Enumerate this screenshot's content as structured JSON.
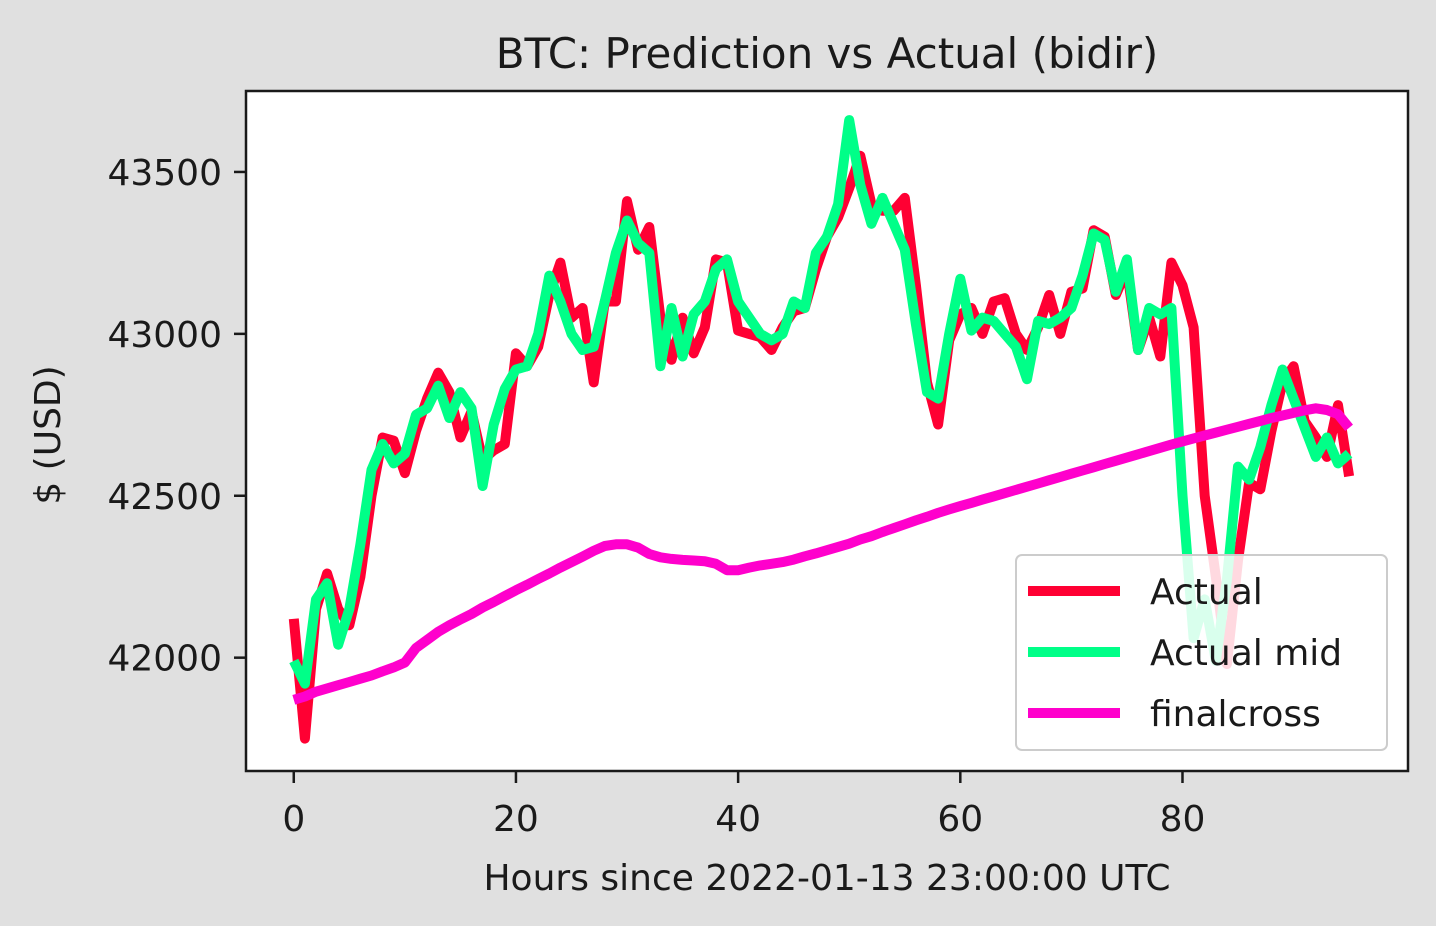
{
  "chart_data": {
    "type": "line",
    "title": "BTC: Prediction vs Actual (bidir)",
    "xlabel": "Hours since 2022-01-13 23:00:00 UTC",
    "ylabel": "$ (USD)",
    "xlim": [
      -4.3,
      100.3
    ],
    "ylim": [
      41650,
      43750
    ],
    "xticks": [
      0,
      20,
      40,
      60,
      80
    ],
    "yticks": [
      42000,
      42500,
      43000,
      43500
    ],
    "grid": false,
    "legend_position": "lower-right",
    "series": [
      {
        "name": "Actual",
        "color": "#ff0033",
        "x": [
          0,
          1,
          2,
          3,
          4,
          5,
          6,
          7,
          8,
          9,
          10,
          11,
          12,
          13,
          14,
          15,
          16,
          17,
          18,
          19,
          20,
          21,
          22,
          23,
          24,
          25,
          26,
          27,
          28,
          29,
          30,
          31,
          32,
          33,
          34,
          35,
          36,
          37,
          38,
          39,
          40,
          41,
          42,
          43,
          44,
          45,
          46,
          47,
          48,
          49,
          50,
          51,
          52,
          53,
          54,
          55,
          56,
          57,
          58,
          59,
          60,
          61,
          62,
          63,
          64,
          65,
          66,
          67,
          68,
          69,
          70,
          71,
          72,
          73,
          74,
          75,
          76,
          77,
          78,
          79,
          80,
          81,
          82,
          83,
          84,
          85,
          86,
          87,
          88,
          89,
          90,
          91,
          92,
          93,
          94,
          95
        ],
        "y": [
          42120,
          41750,
          42150,
          42260,
          42150,
          42100,
          42250,
          42500,
          42680,
          42670,
          42570,
          42700,
          42800,
          42880,
          42820,
          42680,
          42760,
          42610,
          42640,
          42660,
          42940,
          42900,
          42960,
          43120,
          43220,
          43050,
          43080,
          42850,
          43100,
          43100,
          43410,
          43260,
          43330,
          43050,
          42920,
          43050,
          42940,
          43020,
          43230,
          43220,
          43010,
          43000,
          42990,
          42950,
          43020,
          43070,
          43080,
          43200,
          43300,
          43360,
          43450,
          43550,
          43400,
          43380,
          43380,
          43420,
          43150,
          42850,
          42720,
          42980,
          43060,
          43080,
          43000,
          43100,
          43110,
          43000,
          42950,
          43020,
          43120,
          43000,
          43130,
          43140,
          43320,
          43300,
          43120,
          43200,
          42950,
          43050,
          42930,
          43220,
          43150,
          43020,
          42500,
          42250,
          41980,
          42300,
          42540,
          42520,
          42700,
          42850,
          42900,
          42730,
          42680,
          42620,
          42780,
          42560
        ]
      },
      {
        "name": "Actual mid",
        "color": "#00ff88",
        "x": [
          0,
          1,
          2,
          3,
          4,
          5,
          6,
          7,
          8,
          9,
          10,
          11,
          12,
          13,
          14,
          15,
          16,
          17,
          18,
          19,
          20,
          21,
          22,
          23,
          24,
          25,
          26,
          27,
          28,
          29,
          30,
          31,
          32,
          33,
          34,
          35,
          36,
          37,
          38,
          39,
          40,
          41,
          42,
          43,
          44,
          45,
          46,
          47,
          48,
          49,
          50,
          51,
          52,
          53,
          54,
          55,
          56,
          57,
          58,
          59,
          60,
          61,
          62,
          63,
          64,
          65,
          66,
          67,
          68,
          69,
          70,
          71,
          72,
          73,
          74,
          75,
          76,
          77,
          78,
          79,
          80,
          81,
          82,
          83,
          84,
          85,
          86,
          87,
          88,
          89,
          90,
          91,
          92,
          93,
          94,
          95
        ],
        "y": [
          41990,
          41920,
          42180,
          42230,
          42040,
          42150,
          42350,
          42580,
          42660,
          42600,
          42630,
          42750,
          42770,
          42840,
          42740,
          42820,
          42770,
          42530,
          42720,
          42830,
          42890,
          42900,
          43000,
          43180,
          43100,
          43000,
          42950,
          42960,
          43100,
          43250,
          43350,
          43280,
          43250,
          42900,
          43080,
          42930,
          43060,
          43100,
          43200,
          43230,
          43100,
          43050,
          43000,
          42980,
          43000,
          43100,
          43080,
          43250,
          43300,
          43400,
          43660,
          43460,
          43340,
          43420,
          43340,
          43260,
          43030,
          42820,
          42800,
          43000,
          43170,
          43010,
          43050,
          43040,
          43000,
          42960,
          42860,
          43040,
          43030,
          43050,
          43080,
          43180,
          43310,
          43290,
          43130,
          43230,
          42950,
          43080,
          43060,
          43080,
          42500,
          42060,
          42180,
          41990,
          42240,
          42590,
          42550,
          42650,
          42780,
          42890,
          42800,
          42710,
          42620,
          42680,
          42600,
          42630
        ]
      },
      {
        "name": "finalcross",
        "color": "#ff00cc",
        "x": [
          0,
          1,
          2,
          3,
          4,
          5,
          6,
          7,
          8,
          9,
          10,
          11,
          12,
          13,
          14,
          15,
          16,
          17,
          18,
          19,
          20,
          21,
          22,
          23,
          24,
          25,
          26,
          27,
          28,
          29,
          30,
          31,
          32,
          33,
          34,
          35,
          36,
          37,
          38,
          39,
          40,
          41,
          42,
          43,
          44,
          45,
          46,
          47,
          48,
          49,
          50,
          51,
          52,
          53,
          54,
          55,
          56,
          57,
          58,
          59,
          60,
          61,
          62,
          63,
          64,
          65,
          66,
          67,
          68,
          69,
          70,
          71,
          72,
          73,
          74,
          75,
          76,
          77,
          78,
          79,
          80,
          81,
          82,
          83,
          84,
          85,
          86,
          87,
          88,
          89,
          90,
          91,
          92,
          93,
          94,
          95
        ],
        "y": [
          41870,
          41880,
          41895,
          41905,
          41915,
          41925,
          41935,
          41945,
          41958,
          41970,
          41985,
          42030,
          42055,
          42080,
          42100,
          42118,
          42135,
          42155,
          42172,
          42190,
          42208,
          42225,
          42243,
          42260,
          42278,
          42295,
          42312,
          42330,
          42345,
          42350,
          42350,
          42340,
          42320,
          42310,
          42305,
          42302,
          42300,
          42298,
          42290,
          42270,
          42270,
          42278,
          42285,
          42290,
          42295,
          42303,
          42313,
          42322,
          42332,
          42342,
          42352,
          42365,
          42375,
          42388,
          42400,
          42412,
          42424,
          42435,
          42447,
          42458,
          42468,
          42478,
          42488,
          42498,
          42508,
          42518,
          42528,
          42538,
          42548,
          42558,
          42568,
          42578,
          42588,
          42598,
          42608,
          42618,
          42628,
          42638,
          42648,
          42658,
          42668,
          42677,
          42686,
          42695,
          42704,
          42713,
          42722,
          42731,
          42740,
          42748,
          42756,
          42764,
          42770,
          42765,
          42752,
          42710
        ]
      }
    ]
  }
}
